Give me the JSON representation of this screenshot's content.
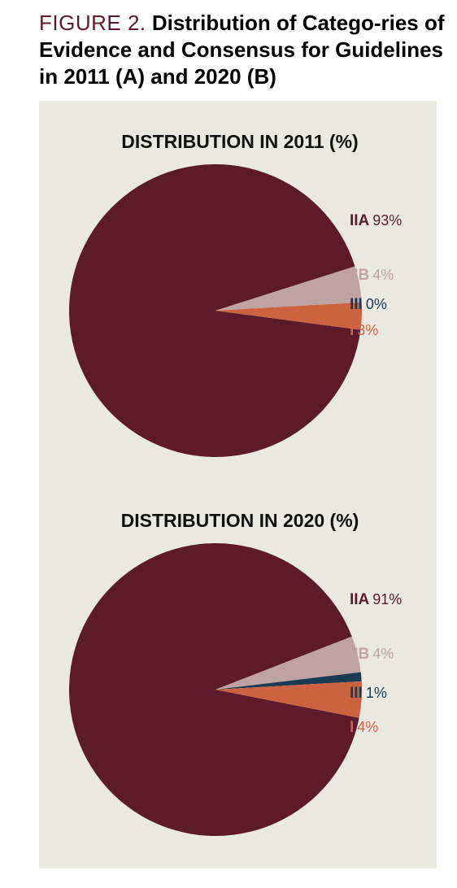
{
  "figure": {
    "label": "FIGURE 2.",
    "title": "Distribution of Catego-ries of Evidence and Consensus for Guidelines in 2011 (A) and 2020 (B)"
  },
  "colors": {
    "IIA": "#5c1a2b",
    "IIB": "#bfa2a2",
    "III": "#1a3b52",
    "I": "#cc623f",
    "panel": "#e9e8e1"
  },
  "chart_data": [
    {
      "type": "pie",
      "title": "DISTRIBUTION IN 2011 (%)",
      "categories": [
        "IIA",
        "IIB",
        "III",
        "I"
      ],
      "values": [
        93,
        4,
        0,
        3
      ],
      "labels": [
        "93%",
        "4%",
        "0%",
        "3%"
      ]
    },
    {
      "type": "pie",
      "title": "DISTRIBUTION IN 2020 (%)",
      "categories": [
        "IIA",
        "IIB",
        "III",
        "I"
      ],
      "values": [
        91,
        4,
        1,
        4
      ],
      "labels": [
        "91%",
        "4%",
        "1%",
        "4%"
      ]
    }
  ]
}
